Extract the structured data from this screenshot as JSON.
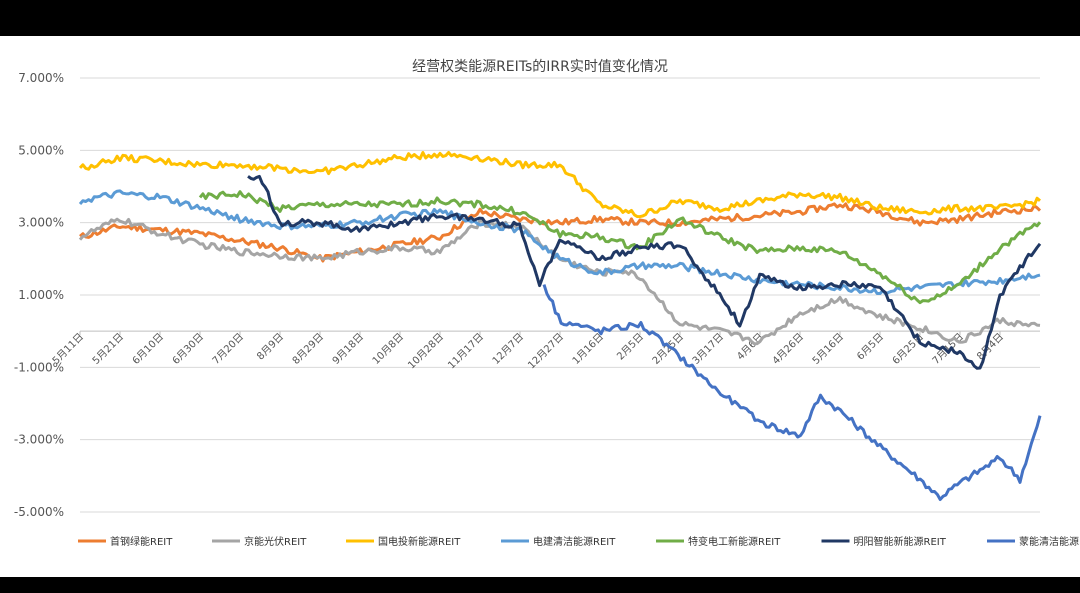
{
  "chart_data": {
    "type": "line",
    "title": "经营权类能源REITs的IRR实时值变化情况",
    "xlabel": "",
    "ylabel": "",
    "ylim": [
      -5.0,
      7.0
    ],
    "y_ticks": [
      "7.000%",
      "5.000%",
      "3.000%",
      "1.000%",
      "-1.000%",
      "-3.000%",
      "-5.000%"
    ],
    "y_tick_values": [
      7,
      5,
      3,
      1,
      -1,
      -3,
      -5
    ],
    "x_tick_labels": [
      "5月11日",
      "5月21日",
      "6月10日",
      "6月30日",
      "7月20日",
      "8月9日",
      "8月29日",
      "9月18日",
      "10月8日",
      "10月28日",
      "11月17日",
      "12月7日",
      "12月27日",
      "1月16日",
      "2月5日",
      "2月25日",
      "3月17日",
      "4月6日",
      "4月26日",
      "5月16日",
      "6月5日",
      "6月25日",
      "7月15日",
      "8月4日"
    ],
    "legend_position": "bottom",
    "grid": "horizontal",
    "series": [
      {
        "name": "首钢绿能REIT",
        "color": "#ED7D31",
        "key_x": [
          0,
          1,
          2,
          3,
          4,
          5,
          6,
          7,
          8,
          9,
          10,
          11,
          12,
          13,
          14,
          15,
          16,
          17,
          18,
          19,
          20,
          21,
          22,
          23,
          24
        ],
        "key_y": [
          2.6,
          2.9,
          2.8,
          2.7,
          2.5,
          2.3,
          2.0,
          2.2,
          2.4,
          2.6,
          3.3,
          3.1,
          3.0,
          3.1,
          3.0,
          3.0,
          3.1,
          3.2,
          3.3,
          3.5,
          3.3,
          3.0,
          3.1,
          3.3,
          3.4
        ]
      },
      {
        "name": "京能光伏REIT",
        "color": "#A5A5A5",
        "key_x": [
          0,
          1,
          2,
          3,
          4,
          5,
          6,
          7,
          8,
          9,
          10,
          11,
          12,
          13,
          13.5,
          14,
          15,
          16,
          17,
          18,
          19,
          20,
          21,
          22,
          23,
          24
        ],
        "key_y": [
          2.6,
          3.1,
          2.7,
          2.4,
          2.2,
          2.1,
          2.0,
          2.2,
          2.3,
          2.2,
          3.0,
          2.9,
          2.0,
          1.6,
          1.7,
          1.5,
          0.2,
          0.0,
          -0.3,
          0.5,
          0.9,
          0.4,
          0.1,
          -0.3,
          0.3,
          0.1
        ]
      },
      {
        "name": "国电投新能源REIT",
        "color": "#FFC000",
        "key_x": [
          0,
          1,
          2,
          3,
          4,
          5,
          6,
          7,
          8,
          9,
          10,
          11,
          12,
          13,
          14,
          15,
          16,
          17,
          18,
          19,
          20,
          21,
          22,
          23,
          24
        ],
        "key_y": [
          4.5,
          4.8,
          4.7,
          4.6,
          4.6,
          4.5,
          4.4,
          4.6,
          4.8,
          4.9,
          4.8,
          4.6,
          4.6,
          3.5,
          3.2,
          3.6,
          3.4,
          3.6,
          3.8,
          3.7,
          3.4,
          3.3,
          3.4,
          3.4,
          3.6
        ]
      },
      {
        "name": "电建清洁能源REIT",
        "color": "#5B9BD5",
        "key_x": [
          0,
          1,
          2,
          3,
          4,
          5,
          6,
          7,
          8,
          9,
          10,
          11,
          12,
          13,
          14,
          15,
          16,
          17,
          18,
          19,
          20,
          21,
          22,
          23,
          24
        ],
        "key_y": [
          3.6,
          3.8,
          3.7,
          3.4,
          3.1,
          2.9,
          2.9,
          3.0,
          3.2,
          3.3,
          3.0,
          2.8,
          2.0,
          1.6,
          1.8,
          1.8,
          1.6,
          1.4,
          1.3,
          1.2,
          1.1,
          1.2,
          1.3,
          1.4,
          1.6
        ]
      },
      {
        "name": "特变电工新能源REIT",
        "color": "#70AD47",
        "x_start": 3.0,
        "key_x": [
          3.0,
          4,
          5,
          6,
          7,
          8,
          9,
          10,
          11,
          12,
          13,
          14,
          15,
          16,
          17,
          18,
          19,
          20,
          21,
          21.5,
          22,
          23,
          24
        ],
        "key_y": [
          3.7,
          3.8,
          3.4,
          3.5,
          3.5,
          3.5,
          3.6,
          3.5,
          3.3,
          2.7,
          2.6,
          2.3,
          3.1,
          2.6,
          2.2,
          2.3,
          2.2,
          1.6,
          0.8,
          1.0,
          1.3,
          2.3,
          3.0
        ]
      },
      {
        "name": "明阳智能新能源REIT",
        "color": "#203864",
        "x_start": 4.2,
        "key_x": [
          4.2,
          4.5,
          5,
          6,
          7,
          8,
          9,
          10,
          11,
          11.5,
          12,
          13,
          14,
          15,
          16,
          16.5,
          17,
          18,
          19,
          20,
          21,
          22,
          22.5,
          23,
          24
        ],
        "key_y": [
          4.2,
          4.3,
          3.0,
          3.0,
          2.8,
          3.0,
          3.2,
          3.1,
          2.9,
          1.3,
          2.6,
          2.0,
          2.3,
          2.4,
          1.0,
          0.2,
          1.5,
          1.2,
          1.3,
          1.2,
          -0.3,
          -0.6,
          -1.1,
          1.0,
          2.5
        ]
      },
      {
        "name": "蒙能清洁能源REIT",
        "color": "#4472C4",
        "x_start": 11.6,
        "key_x": [
          11.6,
          12,
          13,
          14,
          15,
          16,
          17,
          18,
          18.5,
          19,
          20,
          21,
          21.5,
          22,
          23,
          23.5,
          24
        ],
        "key_y": [
          1.3,
          0.3,
          0.0,
          0.2,
          -0.7,
          -1.7,
          -2.5,
          -2.9,
          -1.8,
          -2.2,
          -3.2,
          -4.1,
          -4.6,
          -4.2,
          -3.5,
          -4.1,
          -2.4
        ]
      }
    ]
  }
}
